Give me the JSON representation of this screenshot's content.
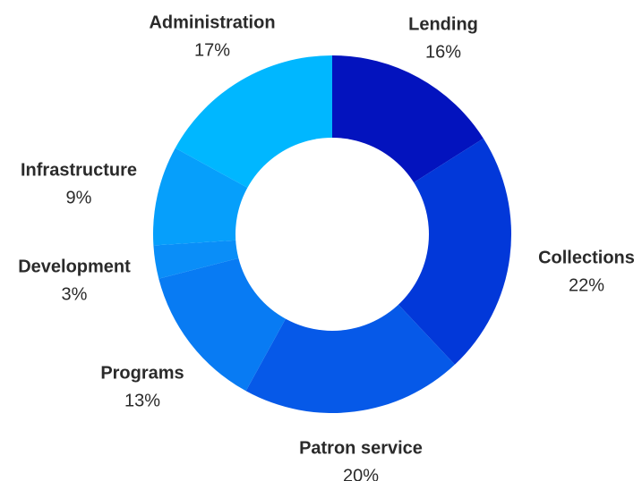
{
  "chart_data": {
    "type": "pie",
    "variant": "donut",
    "title": "",
    "start_angle_deg": 0,
    "direction": "clockwise",
    "legend": "none",
    "labels_position": "outside",
    "slices": [
      {
        "label": "Lending",
        "value": 16,
        "value_label": "16%",
        "color": "#0313BE"
      },
      {
        "label": "Collections",
        "value": 22,
        "value_label": "22%",
        "color": "#0238D9"
      },
      {
        "label": "Patron service",
        "value": 20,
        "value_label": "20%",
        "color": "#0659E8"
      },
      {
        "label": "Programs",
        "value": 13,
        "value_label": "13%",
        "color": "#087BF3"
      },
      {
        "label": "Development",
        "value": 3,
        "value_label": "3%",
        "color": "#0A8EF8"
      },
      {
        "label": "Infrastructure",
        "value": 9,
        "value_label": "9%",
        "color": "#069FFB"
      },
      {
        "label": "Administration",
        "value": 17,
        "value_label": "17%",
        "color": "#00B7FF"
      }
    ]
  }
}
